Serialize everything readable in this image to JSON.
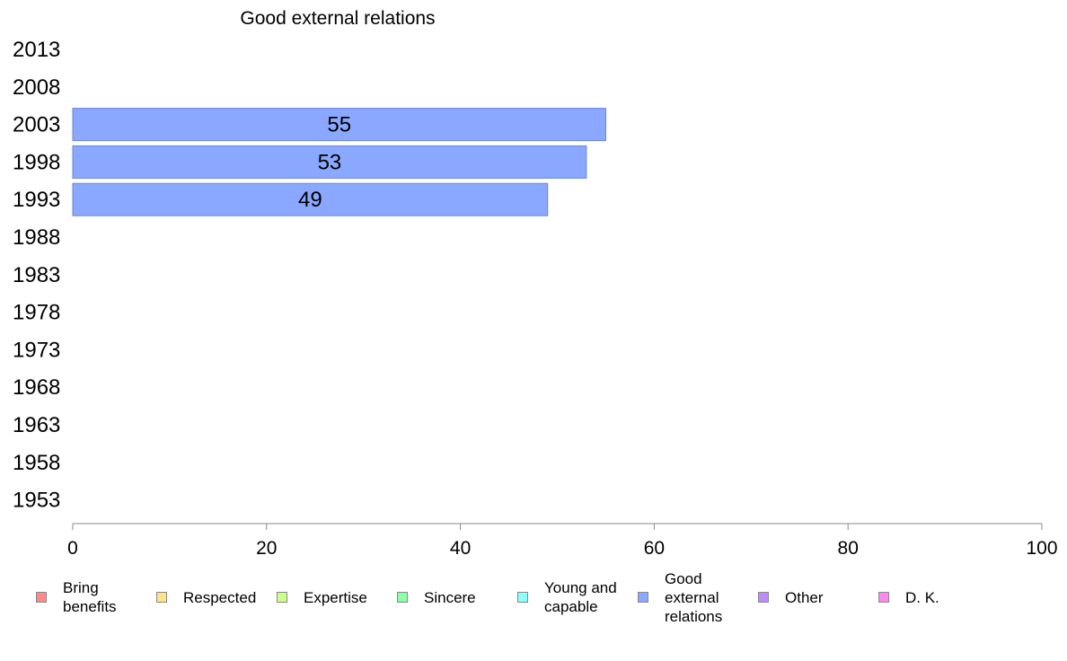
{
  "chart_data": {
    "type": "bar",
    "orientation": "horizontal",
    "title": "Good external relations",
    "categories": [
      "2013",
      "2008",
      "2003",
      "1998",
      "1993",
      "1988",
      "1983",
      "1978",
      "1973",
      "1968",
      "1963",
      "1958",
      "1953"
    ],
    "series": [
      {
        "name": "Good external relations",
        "values": [
          null,
          null,
          55,
          53,
          49,
          null,
          null,
          null,
          null,
          null,
          null,
          null,
          null
        ]
      }
    ],
    "xlim": [
      0,
      100
    ],
    "xticks": [
      "0",
      "20",
      "40",
      "60",
      "80",
      "100"
    ],
    "xlabel": "",
    "ylabel": "",
    "grid": false,
    "bar_color": "#8aa8ff",
    "bar_border": "#6a86d8",
    "legend_position": "bottom",
    "legend": [
      {
        "label": "Bring\nbenefits",
        "color": "#ff8a8a"
      },
      {
        "label": "Respected",
        "color": "#ffe38a"
      },
      {
        "label": "Expertise",
        "color": "#ccff8a"
      },
      {
        "label": "Sincere",
        "color": "#8affa6"
      },
      {
        "label": "Young and\ncapable",
        "color": "#8affff"
      },
      {
        "label": "Good\nexternal\nrelations",
        "color": "#8aa8ff"
      },
      {
        "label": "Other",
        "color": "#c08aff"
      },
      {
        "label": "D. K.",
        "color": "#ff8aef"
      }
    ]
  }
}
